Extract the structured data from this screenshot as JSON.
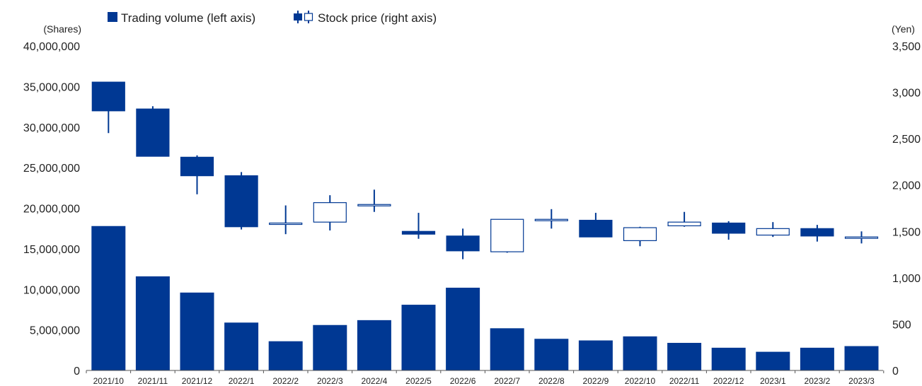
{
  "chart_data": {
    "type": "bar+candlestick",
    "categories": [
      "2021/10",
      "2021/11",
      "2021/12",
      "2022/1",
      "2022/2",
      "2022/3",
      "2022/4",
      "2022/5",
      "2022/6",
      "2022/7",
      "2022/8",
      "2022/9",
      "2022/10",
      "2022/11",
      "2022/12",
      "2023/1",
      "2023/2",
      "2023/3"
    ],
    "legend": {
      "volume_label": "Trading volume (left axis)",
      "price_label": "Stock price (right axis)",
      "placement": "top-left"
    },
    "left_axis": {
      "unit": "(Shares)",
      "min": 0,
      "max": 40000000,
      "ticks": [
        "0",
        "5,000,000",
        "10,000,000",
        "15,000,000",
        "20,000,000",
        "25,000,000",
        "30,000,000",
        "35,000,000",
        "40,000,000"
      ]
    },
    "right_axis": {
      "unit": "(Yen)",
      "min": 0,
      "max": 3500,
      "ticks": [
        "0",
        "500",
        "1,000",
        "1,500",
        "2,000",
        "2,500",
        "3,000",
        "3,500"
      ]
    },
    "volume": [
      17800000,
      11600000,
      9600000,
      5900000,
      3600000,
      5600000,
      6200000,
      8100000,
      10200000,
      5200000,
      3900000,
      3700000,
      4200000,
      3400000,
      2800000,
      2300000,
      2800000,
      3000000
    ],
    "candles": [
      {
        "open": 3110,
        "close": 2800,
        "high": 3110,
        "low": 2560
      },
      {
        "open": 2820,
        "close": 2310,
        "high": 2850,
        "low": 2310
      },
      {
        "open": 2300,
        "close": 2100,
        "high": 2320,
        "low": 1900
      },
      {
        "open": 2100,
        "close": 1550,
        "high": 2140,
        "low": 1520
      },
      {
        "open": 1580,
        "close": 1590,
        "high": 1780,
        "low": 1470
      },
      {
        "open": 1600,
        "close": 1810,
        "high": 1890,
        "low": 1510
      },
      {
        "open": 1780,
        "close": 1790,
        "high": 1950,
        "low": 1710
      },
      {
        "open": 1500,
        "close": 1470,
        "high": 1700,
        "low": 1420
      },
      {
        "open": 1450,
        "close": 1290,
        "high": 1530,
        "low": 1200
      },
      {
        "open": 1280,
        "close": 1630,
        "high": 1630,
        "low": 1270
      },
      {
        "open": 1630,
        "close": 1630,
        "high": 1740,
        "low": 1530
      },
      {
        "open": 1620,
        "close": 1440,
        "high": 1700,
        "low": 1440
      },
      {
        "open": 1400,
        "close": 1540,
        "high": 1550,
        "low": 1340
      },
      {
        "open": 1560,
        "close": 1600,
        "high": 1710,
        "low": 1550
      },
      {
        "open": 1590,
        "close": 1480,
        "high": 1610,
        "low": 1410
      },
      {
        "open": 1460,
        "close": 1530,
        "high": 1600,
        "low": 1440
      },
      {
        "open": 1530,
        "close": 1450,
        "high": 1570,
        "low": 1390
      },
      {
        "open": 1440,
        "close": 1440,
        "high": 1500,
        "low": 1370
      }
    ],
    "colors": {
      "fill": "#003893",
      "axis": "#555555",
      "hollow": "#ffffff"
    },
    "grid": false
  }
}
